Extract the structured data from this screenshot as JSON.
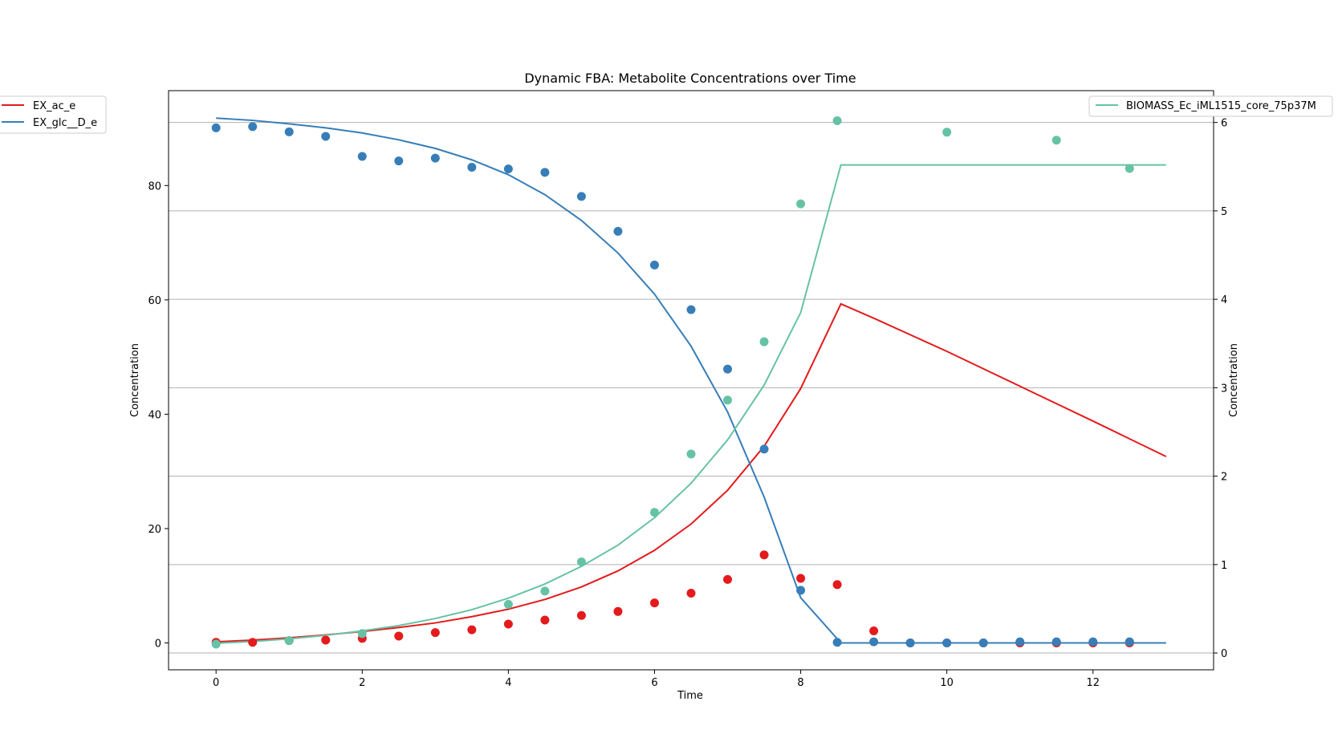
{
  "chart_data": {
    "type": "line",
    "title": "Dynamic FBA: Metabolite Concentrations over Time",
    "xlabel": "Time",
    "ylabel_left": "Concentration",
    "ylabel_right": "Concentration",
    "xlim": [
      -0.65,
      13.65
    ],
    "ylim_left": [
      -4.7,
      96.6
    ],
    "ylim_right": [
      -0.19,
      6.36
    ],
    "xticks": [
      0,
      2,
      4,
      6,
      8,
      10,
      12
    ],
    "yticks_left": [
      0,
      20,
      40,
      60,
      80
    ],
    "yticks_right": [
      0,
      1,
      2,
      3,
      4,
      5,
      6
    ],
    "grid": "horizontal lines at right-axis ticks",
    "legend_left": "upper-left outside",
    "legend_right": "upper-right",
    "series": [
      {
        "name": "EX_ac_e",
        "axis": "left",
        "color": "#e41a1c",
        "line": {
          "x": [
            0,
            0.5,
            1,
            1.5,
            2,
            2.5,
            3,
            3.5,
            4,
            4.5,
            5,
            5.5,
            6,
            6.5,
            7,
            7.5,
            8,
            8.55,
            9,
            10,
            11,
            12,
            13
          ],
          "y": [
            0.2,
            0.5,
            0.9,
            1.4,
            2.0,
            2.7,
            3.5,
            4.6,
            5.9,
            7.6,
            9.8,
            12.6,
            16.2,
            20.8,
            26.7,
            34.4,
            44.5,
            59.3,
            56.8,
            51.0,
            44.9,
            38.8,
            32.6
          ]
        },
        "points": {
          "x": [
            0,
            0.5,
            1,
            1.5,
            2,
            2.5,
            3,
            3.5,
            4,
            4.5,
            5,
            5.5,
            6,
            6.5,
            7,
            7.5,
            8,
            8.5,
            9,
            9.5,
            10,
            10.5,
            11,
            11.5,
            12,
            12.5
          ],
          "y": [
            0.1,
            0.1,
            0.4,
            0.5,
            0.8,
            1.2,
            1.8,
            2.3,
            3.3,
            4.0,
            4.8,
            5.5,
            7.0,
            8.7,
            11.1,
            15.4,
            11.3,
            10.2,
            2.1,
            0,
            0,
            0,
            0,
            0,
            0,
            0
          ]
        }
      },
      {
        "name": "EX_glc__D_e",
        "axis": "left",
        "color": "#377eb8",
        "line": {
          "x": [
            0,
            0.5,
            1,
            1.5,
            2,
            2.5,
            3,
            3.5,
            4,
            4.5,
            5,
            5.5,
            6,
            6.5,
            7,
            7.5,
            8,
            8.55,
            9,
            10,
            11,
            12,
            13
          ],
          "y": [
            91.8,
            91.4,
            90.8,
            90.1,
            89.2,
            88.0,
            86.5,
            84.5,
            81.9,
            78.4,
            73.9,
            68.2,
            61.0,
            51.9,
            40.4,
            25.5,
            7.9,
            0,
            0,
            0,
            0,
            0,
            0
          ]
        },
        "points": {
          "x": [
            0,
            0.5,
            1,
            1.5,
            2,
            2.5,
            3,
            3.5,
            4,
            4.5,
            5,
            5.5,
            6,
            6.5,
            7,
            7.5,
            8,
            8.5,
            9,
            9.5,
            10,
            10.5,
            11,
            11.5,
            12,
            12.5
          ],
          "y": [
            90.1,
            90.3,
            89.4,
            88.6,
            85.1,
            84.3,
            84.8,
            83.2,
            82.9,
            82.3,
            78.1,
            72.0,
            66.1,
            58.3,
            47.9,
            33.9,
            9.2,
            0.1,
            0.2,
            0,
            0,
            0,
            0.2,
            0.2,
            0.2,
            0.2
          ]
        }
      },
      {
        "name": "BIOMASS_Ec_iML1515_core_75p37M",
        "axis": "right",
        "color": "#66c2a5",
        "line": {
          "x": [
            0,
            0.5,
            1,
            1.5,
            2,
            2.5,
            3,
            3.5,
            4,
            4.5,
            5,
            5.5,
            6,
            6.5,
            7,
            7.5,
            8,
            8.55,
            9,
            10,
            11,
            12,
            13
          ],
          "y": [
            0.11,
            0.13,
            0.16,
            0.2,
            0.25,
            0.31,
            0.39,
            0.49,
            0.62,
            0.78,
            0.98,
            1.22,
            1.53,
            1.92,
            2.41,
            3.03,
            3.85,
            5.52,
            5.52,
            5.52,
            5.52,
            5.52,
            5.52
          ]
        },
        "points": {
          "x": [
            0,
            1,
            2,
            4,
            4.5,
            5,
            6,
            6.5,
            7,
            7.5,
            8,
            8.5,
            10,
            11.5,
            12.5
          ],
          "y": [
            0.1,
            0.14,
            0.22,
            0.55,
            0.7,
            1.03,
            1.59,
            2.25,
            2.86,
            3.52,
            5.08,
            6.02,
            5.89,
            5.8,
            5.48
          ]
        }
      }
    ]
  }
}
